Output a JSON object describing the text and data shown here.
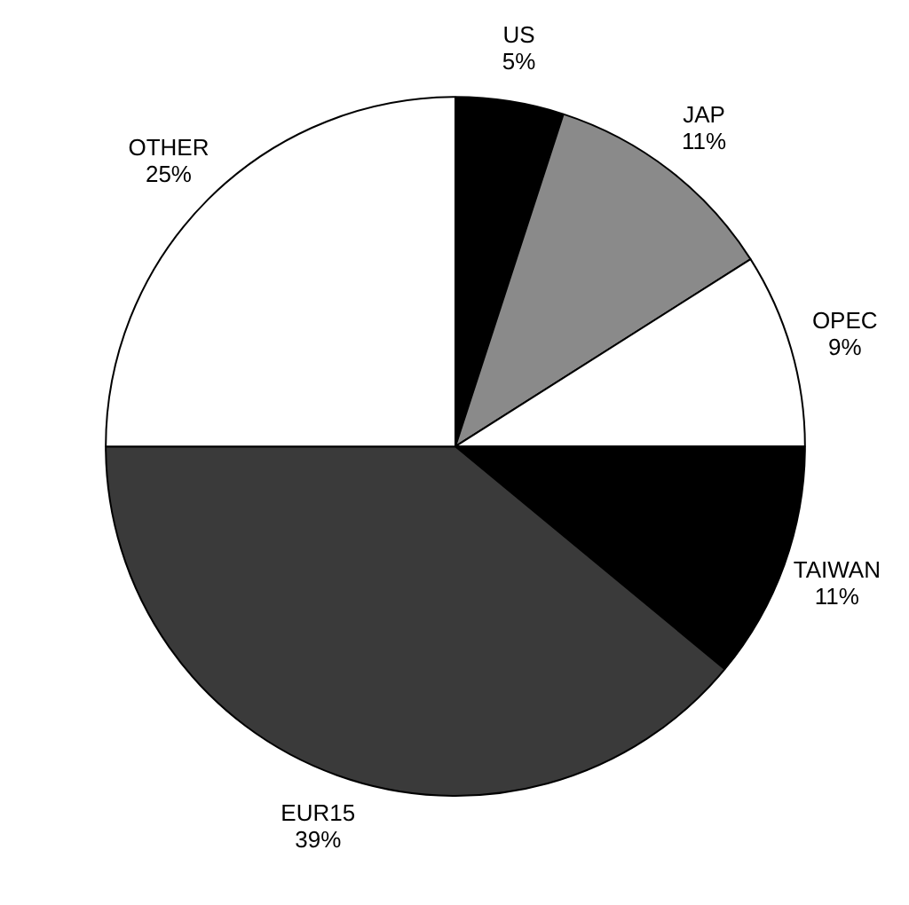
{
  "chart_data": {
    "type": "pie",
    "categories": [
      "US",
      "JAP",
      "OPEC",
      "TAIWAN",
      "EUR15",
      "OTHER"
    ],
    "values": [
      5,
      11,
      9,
      11,
      39,
      25
    ],
    "colors": [
      "#000000",
      "#8a8a8a",
      "#ffffff",
      "#000000",
      "#3a3a3a",
      "#ffffff"
    ],
    "value_labels": [
      "5%",
      "11%",
      "9%",
      "11%",
      "39%",
      "25%"
    ]
  }
}
